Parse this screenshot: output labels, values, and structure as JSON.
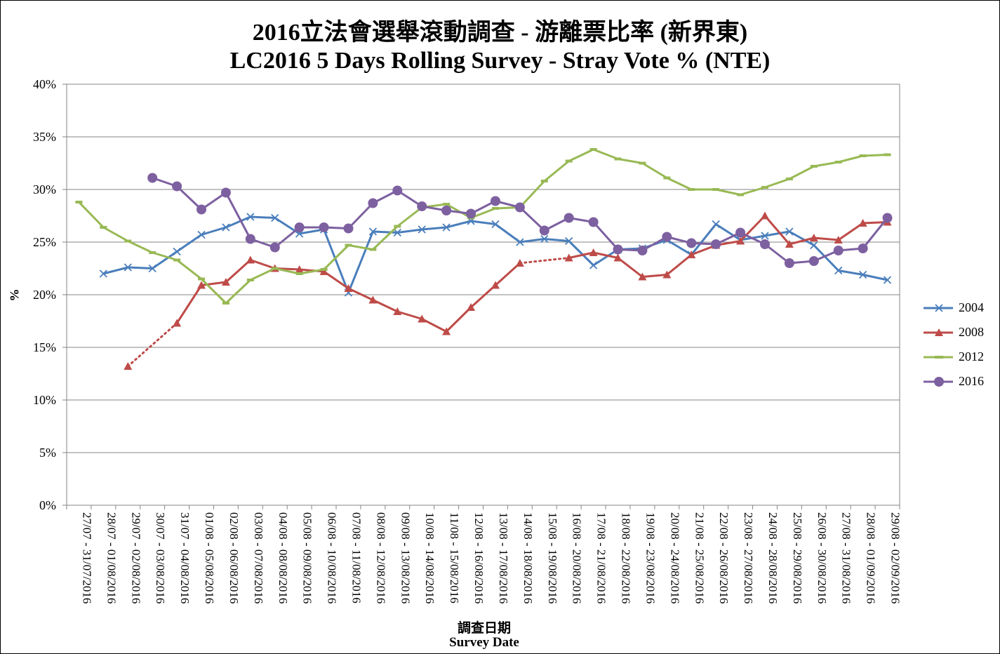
{
  "chart_data": {
    "type": "line",
    "title": "2016立法會選舉滾動調查 - 游離票比率 (新界東)",
    "subtitle": "LC2016 5 Days Rolling Survey - Stray Vote % (NTE)",
    "xlabel_zh": "調查日期",
    "xlabel": "Survey Date",
    "ylabel": "%",
    "ylim": [
      0,
      40
    ],
    "yticks": [
      "0%",
      "5%",
      "10%",
      "15%",
      "20%",
      "25%",
      "30%",
      "35%",
      "40%"
    ],
    "categories": [
      "27/07 - 31/07/2016",
      "28/07 - 01/08/2016",
      "29/07 - 02/08/2016",
      "30/07 - 03/08/2016",
      "31/07 - 04/08/2016",
      "01/08 - 05/08/2016",
      "02/08 - 06/08/2016",
      "03/08 - 07/08/2016",
      "04/08 - 08/08/2016",
      "05/08 - 09/08/2016",
      "06/08 - 10/08/2016",
      "07/08 - 11/08/2016",
      "08/08 - 12/08/2016",
      "09/08 - 13/08/2016",
      "10/08 - 14/08/2016",
      "11/08 - 15/08/2016",
      "12/08 - 16/08/2016",
      "13/08 - 17/08/2016",
      "14/08 - 18/08/2016",
      "15/08 - 19/08/2016",
      "16/08 - 20/08/2016",
      "17/08 - 21/08/2016",
      "18/08 - 22/08/2016",
      "19/08 - 23/08/2016",
      "20/08 - 24/08/2016",
      "21/08 - 25/08/2016",
      "22/08 - 26/08/2016",
      "23/08 - 27/08/2016",
      "24/08 - 28/08/2016",
      "25/08 - 29/08/2016",
      "26/08 - 30/08/2016",
      "27/08 - 31/08/2016",
      "28/08 - 01/09/2016",
      "29/08 - 02/09/2016"
    ],
    "series": [
      {
        "name": "2004",
        "color": "#4a7ebb",
        "marker": "x",
        "values": [
          null,
          22.0,
          22.6,
          22.5,
          24.1,
          25.7,
          26.4,
          27.4,
          27.3,
          25.8,
          26.2,
          20.2,
          26.0,
          25.9,
          26.2,
          26.4,
          27.0,
          26.7,
          25.0,
          25.3,
          25.1,
          22.8,
          24.3,
          24.4,
          25.2,
          23.8,
          26.7,
          25.2,
          25.6,
          26.0,
          24.7,
          22.3,
          21.9,
          21.4
        ]
      },
      {
        "name": "2008",
        "color": "#be4b48",
        "marker": "triangle",
        "values": [
          null,
          null,
          13.2,
          null,
          17.3,
          20.9,
          21.2,
          23.3,
          22.5,
          22.4,
          22.2,
          20.6,
          19.5,
          18.4,
          17.7,
          16.5,
          18.8,
          20.9,
          23.0,
          null,
          23.5,
          24.0,
          23.5,
          21.7,
          21.9,
          23.8,
          24.7,
          25.1,
          27.5,
          24.8,
          25.4,
          25.2,
          26.8,
          26.9
        ]
      },
      {
        "name": "2012",
        "color": "#98b954",
        "marker": "dash",
        "values": [
          28.8,
          26.4,
          25.1,
          24.0,
          23.3,
          21.5,
          19.2,
          21.4,
          22.5,
          22.0,
          22.4,
          24.7,
          24.3,
          26.5,
          28.3,
          28.6,
          27.3,
          28.2,
          28.3,
          30.8,
          32.7,
          33.8,
          32.9,
          32.5,
          31.1,
          30.0,
          30.0,
          29.5,
          30.2,
          31.0,
          32.2,
          32.6,
          33.2,
          33.3
        ]
      },
      {
        "name": "2016",
        "color": "#7d60a0",
        "marker": "circle",
        "values": [
          null,
          null,
          null,
          31.1,
          30.3,
          28.1,
          29.7,
          25.3,
          24.5,
          26.4,
          26.4,
          26.3,
          28.7,
          29.9,
          28.4,
          28.0,
          27.7,
          28.9,
          28.3,
          26.1,
          27.3,
          26.9,
          24.3,
          24.2,
          25.5,
          24.9,
          24.8,
          25.9,
          24.8,
          23.0,
          23.2,
          24.2,
          24.4,
          27.3
        ]
      }
    ],
    "dotted_gaps": [
      {
        "series": "2008",
        "from": "29/07 - 02/08/2016",
        "to": "31/07 - 04/08/2016"
      },
      {
        "series": "2008",
        "from": "14/08 - 18/08/2016",
        "to": "16/08 - 20/08/2016"
      }
    ],
    "legend_position": "right",
    "grid": "horizontal"
  }
}
